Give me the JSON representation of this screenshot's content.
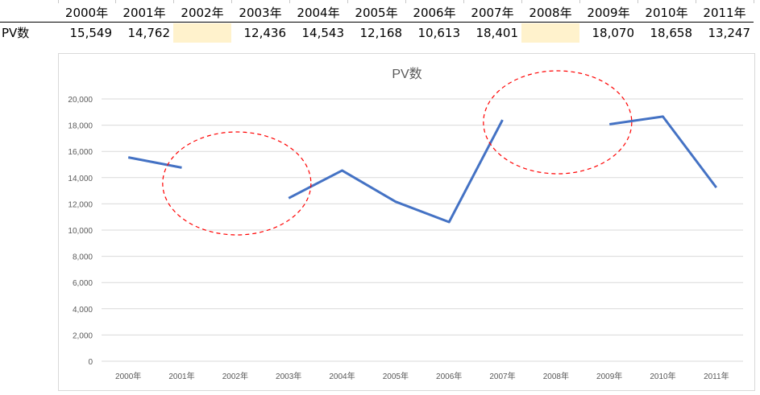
{
  "table": {
    "row_label": "PV数",
    "headers": [
      "2000年",
      "2001年",
      "2002年",
      "2003年",
      "2004年",
      "2005年",
      "2006年",
      "2007年",
      "2008年",
      "2009年",
      "2010年",
      "2011年"
    ],
    "values": [
      "15,549",
      "14,762",
      "",
      "12,436",
      "14,543",
      "12,168",
      "10,613",
      "18,401",
      "",
      "18,070",
      "18,658",
      "13,247"
    ],
    "highlight_color": "#fff2cc"
  },
  "chart_data": {
    "type": "line",
    "title": "PV数",
    "categories": [
      "2000年",
      "2001年",
      "2002年",
      "2003年",
      "2004年",
      "2005年",
      "2006年",
      "2007年",
      "2008年",
      "2009年",
      "2010年",
      "2011年"
    ],
    "series": [
      {
        "name": "PV数",
        "values": [
          15549,
          14762,
          null,
          12436,
          14543,
          12168,
          10613,
          18401,
          null,
          18070,
          18658,
          13247
        ],
        "color": "#4472c4"
      }
    ],
    "xlabel": "",
    "ylabel": "",
    "ylim": [
      0,
      20000
    ],
    "yticks": [
      "0",
      "2,000",
      "4,000",
      "6,000",
      "8,000",
      "10,000",
      "12,000",
      "14,000",
      "16,000",
      "18,000",
      "20,000"
    ],
    "grid": true,
    "legend": "none",
    "annotations": [
      {
        "type": "dashed-ellipse",
        "around": "2002年",
        "color": "#ff0000"
      },
      {
        "type": "dashed-ellipse",
        "around": "2008年",
        "color": "#ff0000"
      }
    ]
  }
}
